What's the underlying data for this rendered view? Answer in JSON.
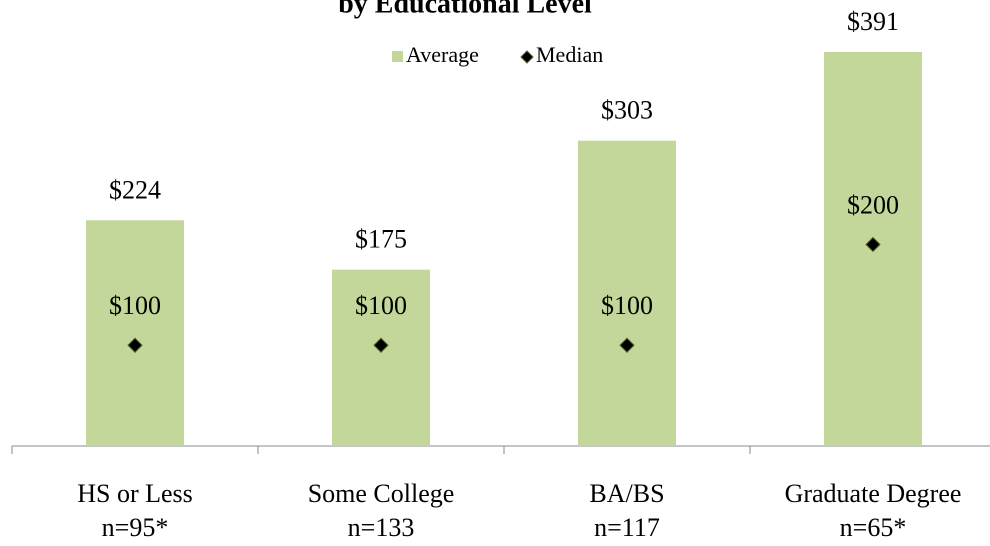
{
  "chart_data": {
    "type": "bar",
    "title": "by Educational Level",
    "categories": [
      [
        "HS or Less",
        "n=95*"
      ],
      [
        "Some College",
        "n=133"
      ],
      [
        "BA/BS",
        "n=117"
      ],
      [
        "Graduate Degree",
        "n=65*"
      ]
    ],
    "series": [
      {
        "name": "Average",
        "color": "#c4d79b",
        "values": [
          224,
          175,
          303,
          391
        ],
        "value_labels": [
          "$224",
          "$175",
          "$303",
          "$391"
        ]
      },
      {
        "name": "Median",
        "color": "#000000",
        "values": [
          100,
          100,
          100,
          200
        ],
        "value_labels": [
          "$100",
          "$100",
          "$100",
          "$200"
        ]
      }
    ]
  }
}
